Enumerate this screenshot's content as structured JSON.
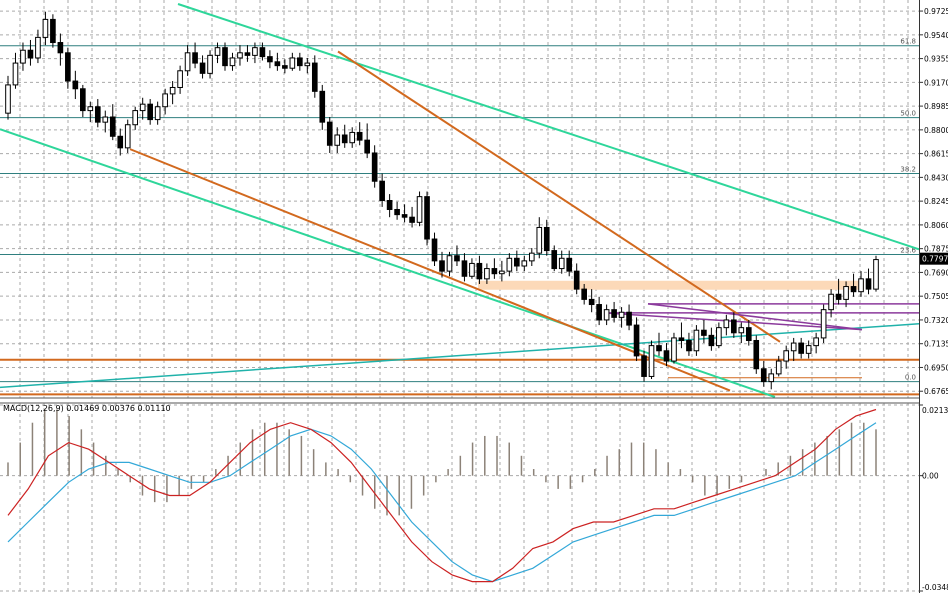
{
  "chart_data": [
    {
      "type": "candlestick",
      "panel": "price",
      "ylim": [
        0.672,
        0.978
      ],
      "grid": true,
      "price_ticks": [
        "0.9725",
        "0.9540",
        "0.9355",
        "0.9170",
        "0.8985",
        "0.8800",
        "0.8615",
        "0.8430",
        "0.8245",
        "0.8060",
        "0.7875",
        "0.7690",
        "0.7505",
        "0.7320",
        "0.7135",
        "0.6950",
        "0.6765"
      ],
      "current_price": "0.7797",
      "fib_levels": [
        {
          "label": "61.8",
          "value": 0.9455
        },
        {
          "label": "50.0",
          "value": 0.8895
        },
        {
          "label": "38.2",
          "value": 0.846
        },
        {
          "label": "23.6",
          "value": 0.783
        },
        {
          "label": "0.0",
          "value": 0.684
        }
      ],
      "colors": {
        "bull": "#ffffff",
        "bear": "#000000",
        "channel": "#2ed69a",
        "trend": "#d2691e",
        "support_zone": "#fcd9b8",
        "purple": "#8b3a9c",
        "teal": "#20b2aa",
        "fib": "#2f7f7f",
        "price_tag": "#000000"
      },
      "candles": [
        [
          0.893,
          0.922,
          0.888,
          0.915
        ],
        [
          0.915,
          0.94,
          0.912,
          0.932
        ],
        [
          0.932,
          0.948,
          0.926,
          0.942
        ],
        [
          0.942,
          0.95,
          0.93,
          0.936
        ],
        [
          0.936,
          0.958,
          0.932,
          0.952
        ],
        [
          0.952,
          0.972,
          0.946,
          0.966
        ],
        [
          0.966,
          0.97,
          0.944,
          0.948
        ],
        [
          0.948,
          0.955,
          0.93,
          0.94
        ],
        [
          0.94,
          0.944,
          0.912,
          0.918
        ],
        [
          0.918,
          0.926,
          0.904,
          0.912
        ],
        [
          0.912,
          0.915,
          0.89,
          0.895
        ],
        [
          0.895,
          0.902,
          0.886,
          0.898
        ],
        [
          0.898,
          0.904,
          0.882,
          0.886
        ],
        [
          0.886,
          0.895,
          0.878,
          0.89
        ],
        [
          0.89,
          0.9,
          0.872,
          0.875
        ],
        [
          0.875,
          0.881,
          0.86,
          0.866
        ],
        [
          0.866,
          0.888,
          0.862,
          0.884
        ],
        [
          0.884,
          0.898,
          0.88,
          0.895
        ],
        [
          0.895,
          0.905,
          0.888,
          0.9
        ],
        [
          0.9,
          0.904,
          0.884,
          0.888
        ],
        [
          0.888,
          0.902,
          0.884,
          0.898
        ],
        [
          0.898,
          0.912,
          0.892,
          0.908
        ],
        [
          0.908,
          0.918,
          0.9,
          0.913
        ],
        [
          0.913,
          0.93,
          0.908,
          0.926
        ],
        [
          0.926,
          0.946,
          0.922,
          0.94
        ],
        [
          0.94,
          0.948,
          0.928,
          0.932
        ],
        [
          0.932,
          0.938,
          0.92,
          0.924
        ],
        [
          0.924,
          0.942,
          0.92,
          0.938
        ],
        [
          0.938,
          0.948,
          0.932,
          0.944
        ],
        [
          0.944,
          0.948,
          0.926,
          0.93
        ],
        [
          0.93,
          0.94,
          0.926,
          0.936
        ],
        [
          0.936,
          0.946,
          0.93,
          0.94
        ],
        [
          0.94,
          0.946,
          0.933,
          0.938
        ],
        [
          0.938,
          0.948,
          0.932,
          0.944
        ],
        [
          0.944,
          0.948,
          0.934,
          0.937
        ],
        [
          0.937,
          0.942,
          0.928,
          0.933
        ],
        [
          0.933,
          0.94,
          0.926,
          0.93
        ],
        [
          0.93,
          0.935,
          0.924,
          0.928
        ],
        [
          0.928,
          0.94,
          0.926,
          0.936
        ],
        [
          0.936,
          0.94,
          0.926,
          0.93
        ],
        [
          0.93,
          0.936,
          0.924,
          0.932
        ],
        [
          0.932,
          0.938,
          0.905,
          0.91
        ],
        [
          0.91,
          0.915,
          0.88,
          0.886
        ],
        [
          0.886,
          0.89,
          0.862,
          0.868
        ],
        [
          0.868,
          0.882,
          0.862,
          0.876
        ],
        [
          0.876,
          0.884,
          0.866,
          0.87
        ],
        [
          0.87,
          0.882,
          0.866,
          0.878
        ],
        [
          0.878,
          0.886,
          0.868,
          0.872
        ],
        [
          0.872,
          0.885,
          0.858,
          0.862
        ],
        [
          0.862,
          0.868,
          0.835,
          0.84
        ],
        [
          0.84,
          0.846,
          0.82,
          0.825
        ],
        [
          0.825,
          0.83,
          0.812,
          0.818
        ],
        [
          0.818,
          0.824,
          0.81,
          0.814
        ],
        [
          0.814,
          0.822,
          0.808,
          0.812
        ],
        [
          0.812,
          0.82,
          0.804,
          0.808
        ],
        [
          0.808,
          0.832,
          0.805,
          0.828
        ],
        [
          0.828,
          0.832,
          0.79,
          0.795
        ],
        [
          0.795,
          0.8,
          0.774,
          0.778
        ],
        [
          0.778,
          0.785,
          0.765,
          0.77
        ],
        [
          0.77,
          0.785,
          0.766,
          0.782
        ],
        [
          0.782,
          0.79,
          0.774,
          0.778
        ],
        [
          0.778,
          0.784,
          0.762,
          0.766
        ],
        [
          0.766,
          0.78,
          0.764,
          0.776
        ],
        [
          0.776,
          0.782,
          0.76,
          0.764
        ],
        [
          0.764,
          0.776,
          0.76,
          0.772
        ],
        [
          0.772,
          0.78,
          0.764,
          0.768
        ],
        [
          0.768,
          0.778,
          0.762,
          0.77
        ],
        [
          0.77,
          0.784,
          0.766,
          0.78
        ],
        [
          0.78,
          0.786,
          0.77,
          0.774
        ],
        [
          0.774,
          0.782,
          0.77,
          0.778
        ],
        [
          0.778,
          0.788,
          0.774,
          0.784
        ],
        [
          0.784,
          0.812,
          0.78,
          0.804
        ],
        [
          0.804,
          0.81,
          0.782,
          0.786
        ],
        [
          0.786,
          0.79,
          0.77,
          0.772
        ],
        [
          0.772,
          0.786,
          0.768,
          0.78
        ],
        [
          0.78,
          0.786,
          0.766,
          0.77
        ],
        [
          0.77,
          0.776,
          0.752,
          0.756
        ],
        [
          0.756,
          0.76,
          0.744,
          0.748
        ],
        [
          0.748,
          0.756,
          0.738,
          0.744
        ],
        [
          0.744,
          0.75,
          0.728,
          0.732
        ],
        [
          0.732,
          0.744,
          0.728,
          0.74
        ],
        [
          0.74,
          0.746,
          0.73,
          0.734
        ],
        [
          0.734,
          0.742,
          0.726,
          0.738
        ],
        [
          0.738,
          0.744,
          0.724,
          0.728
        ],
        [
          0.728,
          0.734,
          0.7,
          0.704
        ],
        [
          0.704,
          0.708,
          0.684,
          0.688
        ],
        [
          0.688,
          0.716,
          0.686,
          0.712
        ],
        [
          0.712,
          0.722,
          0.704,
          0.708
        ],
        [
          0.708,
          0.714,
          0.696,
          0.7
        ],
        [
          0.7,
          0.722,
          0.698,
          0.718
        ],
        [
          0.718,
          0.73,
          0.71,
          0.716
        ],
        [
          0.716,
          0.722,
          0.704,
          0.708
        ],
        [
          0.708,
          0.728,
          0.704,
          0.724
        ],
        [
          0.724,
          0.732,
          0.714,
          0.72
        ],
        [
          0.72,
          0.726,
          0.708,
          0.712
        ],
        [
          0.712,
          0.73,
          0.71,
          0.726
        ],
        [
          0.726,
          0.736,
          0.72,
          0.732
        ],
        [
          0.732,
          0.738,
          0.718,
          0.722
        ],
        [
          0.722,
          0.73,
          0.714,
          0.726
        ],
        [
          0.726,
          0.732,
          0.712,
          0.716
        ],
        [
          0.716,
          0.72,
          0.69,
          0.694
        ],
        [
          0.694,
          0.7,
          0.68,
          0.684
        ],
        [
          0.684,
          0.694,
          0.678,
          0.69
        ],
        [
          0.69,
          0.704,
          0.688,
          0.7
        ],
        [
          0.7,
          0.712,
          0.694,
          0.708
        ],
        [
          0.708,
          0.718,
          0.7,
          0.714
        ],
        [
          0.714,
          0.718,
          0.702,
          0.706
        ],
        [
          0.706,
          0.716,
          0.702,
          0.712
        ],
        [
          0.712,
          0.722,
          0.706,
          0.718
        ],
        [
          0.718,
          0.744,
          0.714,
          0.74
        ],
        [
          0.74,
          0.756,
          0.734,
          0.752
        ],
        [
          0.752,
          0.764,
          0.744,
          0.748
        ],
        [
          0.748,
          0.762,
          0.742,
          0.758
        ],
        [
          0.758,
          0.768,
          0.75,
          0.754
        ],
        [
          0.754,
          0.77,
          0.75,
          0.764
        ],
        [
          0.764,
          0.772,
          0.752,
          0.756
        ],
        [
          0.756,
          0.782,
          0.754,
          0.779
        ]
      ]
    },
    {
      "type": "histogram-line",
      "panel": "indicator",
      "title": "MACD(12,26,9) 0.01469 0.00376 0.01110",
      "ylim": [
        -0.03485,
        0.02135
      ],
      "indicator_ticks": [
        "0.02135",
        "0.00",
        "-0.03485"
      ],
      "colors": {
        "hist": "#8c8278",
        "main": "#cc2222",
        "signal": "#33a8d8"
      },
      "hist": [
        0.004,
        0.01,
        0.016,
        0.02,
        0.02,
        0.018,
        0.014,
        0.01,
        0.006,
        0.002,
        -0.002,
        -0.006,
        -0.008,
        -0.008,
        -0.006,
        -0.004,
        -0.002,
        0.002,
        0.006,
        0.01,
        0.014,
        0.016,
        0.016,
        0.014,
        0.012,
        0.008,
        0.004,
        0.002,
        -0.002,
        -0.006,
        -0.01,
        -0.012,
        -0.012,
        -0.01,
        -0.006,
        -0.002,
        0.002,
        0.006,
        0.01,
        0.012,
        0.012,
        0.01,
        0.006,
        0.002,
        -0.002,
        -0.004,
        -0.004,
        -0.002,
        0.002,
        0.006,
        0.008,
        0.01,
        0.01,
        0.008,
        0.004,
        0.002,
        -0.002,
        -0.006,
        -0.006,
        -0.004,
        -0.002,
        0.0,
        0.002,
        0.004,
        0.006,
        0.008,
        0.01,
        0.012,
        0.014,
        0.016,
        0.016,
        0.014
      ],
      "main": [
        -0.012,
        -0.004,
        0.006,
        0.01,
        0.008,
        0.004,
        0.0,
        -0.004,
        -0.006,
        -0.006,
        -0.002,
        0.004,
        0.01,
        0.014,
        0.016,
        0.014,
        0.01,
        0.004,
        -0.004,
        -0.012,
        -0.02,
        -0.026,
        -0.03,
        -0.032,
        -0.032,
        -0.028,
        -0.022,
        -0.02,
        -0.016,
        -0.014,
        -0.014,
        -0.012,
        -0.01,
        -0.01,
        -0.008,
        -0.006,
        -0.004,
        -0.002,
        0.0,
        0.004,
        0.008,
        0.014,
        0.018,
        0.02
      ],
      "signal": [
        -0.02,
        -0.014,
        -0.008,
        -0.002,
        0.002,
        0.004,
        0.004,
        0.002,
        0.0,
        -0.002,
        -0.002,
        0.0,
        0.004,
        0.008,
        0.012,
        0.014,
        0.012,
        0.008,
        0.002,
        -0.006,
        -0.014,
        -0.02,
        -0.026,
        -0.03,
        -0.032,
        -0.03,
        -0.028,
        -0.024,
        -0.02,
        -0.018,
        -0.016,
        -0.014,
        -0.012,
        -0.012,
        -0.01,
        -0.008,
        -0.006,
        -0.004,
        -0.002,
        0.0,
        0.004,
        0.008,
        0.012,
        0.016
      ]
    }
  ]
}
